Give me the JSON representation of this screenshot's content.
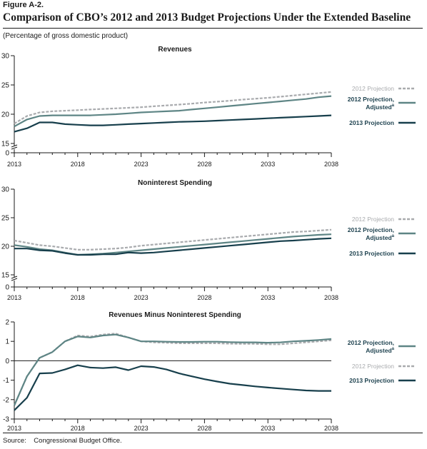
{
  "figure_label": "Figure A-2.",
  "figure_title": "Comparison of CBO’s 2012 and 2013 Budget Projections Under the Extended Baseline",
  "subtitle": "(Percentage of gross domestic product)",
  "source": "Source:    Congressional Budget Office.",
  "colors": {
    "p2012": "#a9abae",
    "p2012_adjusted": "#5e8585",
    "p2013": "#173f4c"
  },
  "chart_data": [
    {
      "type": "line",
      "title": "Revenues",
      "xlim": [
        2013,
        2038
      ],
      "ylim": [
        15,
        30
      ],
      "y_axis_break": true,
      "xticks": [
        "2013",
        "2018",
        "2023",
        "2028",
        "2033",
        "2038"
      ],
      "yticks": [
        "15",
        "20",
        "25",
        "30"
      ],
      "yzero_label": "0",
      "legend_position": "right",
      "legend_order": [
        "p2012",
        "p2012_adjusted",
        "p2013"
      ],
      "x": [
        2013,
        2014,
        2015,
        2016,
        2017,
        2018,
        2019,
        2020,
        2021,
        2022,
        2023,
        2024,
        2025,
        2026,
        2027,
        2028,
        2029,
        2030,
        2031,
        2032,
        2033,
        2034,
        2035,
        2036,
        2037,
        2038
      ],
      "series": [
        {
          "key": "p2012",
          "name": "2012 Projection",
          "style": "dashed",
          "values": [
            18.4,
            19.7,
            20.3,
            20.5,
            20.6,
            20.7,
            20.8,
            20.9,
            21.0,
            21.1,
            21.2,
            21.35,
            21.5,
            21.65,
            21.8,
            22.0,
            22.15,
            22.3,
            22.5,
            22.65,
            22.8,
            23.0,
            23.2,
            23.4,
            23.6,
            23.8
          ]
        },
        {
          "key": "p2012_adjusted",
          "name": "2012 Projection, Adjusted",
          "name_superscript": "a",
          "style": "solid",
          "values": [
            17.9,
            19.1,
            19.7,
            19.8,
            19.8,
            19.8,
            19.8,
            19.9,
            20.0,
            20.15,
            20.3,
            20.4,
            20.5,
            20.6,
            20.8,
            21.0,
            21.2,
            21.4,
            21.6,
            21.8,
            22.0,
            22.2,
            22.4,
            22.6,
            22.9,
            23.1
          ]
        },
        {
          "key": "p2013",
          "name": "2013 Projection",
          "style": "solid",
          "values": [
            17.0,
            17.6,
            18.6,
            18.6,
            18.3,
            18.2,
            18.1,
            18.1,
            18.2,
            18.3,
            18.4,
            18.5,
            18.6,
            18.7,
            18.75,
            18.8,
            18.9,
            19.0,
            19.1,
            19.2,
            19.3,
            19.4,
            19.5,
            19.6,
            19.7,
            19.8
          ]
        }
      ]
    },
    {
      "type": "line",
      "title": "Noninterest Spending",
      "xlim": [
        2013,
        2038
      ],
      "ylim": [
        15,
        30
      ],
      "y_axis_break": true,
      "xticks": [
        "2013",
        "2018",
        "2023",
        "2028",
        "2033",
        "2038"
      ],
      "yticks": [
        "15",
        "20",
        "25",
        "30"
      ],
      "yzero_label": "0",
      "legend_position": "right",
      "legend_order": [
        "p2012",
        "p2012_adjusted",
        "p2013"
      ],
      "x": [
        2013,
        2014,
        2015,
        2016,
        2017,
        2018,
        2019,
        2020,
        2021,
        2022,
        2023,
        2024,
        2025,
        2026,
        2027,
        2028,
        2029,
        2030,
        2031,
        2032,
        2033,
        2034,
        2035,
        2036,
        2037,
        2038
      ],
      "series": [
        {
          "key": "p2012",
          "name": "2012 Projection",
          "style": "dashed",
          "values": [
            21.0,
            20.6,
            20.2,
            20.0,
            19.7,
            19.4,
            19.4,
            19.5,
            19.6,
            19.8,
            20.1,
            20.3,
            20.5,
            20.7,
            20.9,
            21.1,
            21.3,
            21.5,
            21.7,
            21.9,
            22.1,
            22.3,
            22.5,
            22.6,
            22.75,
            22.9
          ]
        },
        {
          "key": "p2012_adjusted",
          "name": "2012 Projection, Adjusted",
          "name_superscript": "a",
          "style": "solid",
          "values": [
            20.2,
            19.9,
            19.5,
            19.3,
            18.9,
            18.5,
            18.6,
            18.7,
            18.9,
            19.1,
            19.3,
            19.5,
            19.7,
            19.9,
            20.1,
            20.3,
            20.5,
            20.7,
            20.9,
            21.1,
            21.3,
            21.5,
            21.7,
            21.85,
            22.0,
            22.1
          ]
        },
        {
          "key": "p2013",
          "name": "2013 Projection",
          "style": "solid",
          "values": [
            19.6,
            19.6,
            19.3,
            19.2,
            18.8,
            18.5,
            18.5,
            18.6,
            18.6,
            18.9,
            18.8,
            18.9,
            19.1,
            19.3,
            19.5,
            19.7,
            19.9,
            20.1,
            20.3,
            20.5,
            20.7,
            20.9,
            21.0,
            21.15,
            21.3,
            21.4
          ]
        }
      ]
    },
    {
      "type": "line",
      "title": "Revenues Minus Noninterest Spending",
      "xlim": [
        2013,
        2038
      ],
      "ylim": [
        -3,
        2
      ],
      "y_axis_break": false,
      "xticks": [
        "2013",
        "2018",
        "2023",
        "2028",
        "2033",
        "2038"
      ],
      "yticks": [
        "-3",
        "-2",
        "-1",
        "0",
        "1",
        "2"
      ],
      "legend_position": "right",
      "legend_order": [
        "p2012_adjusted",
        "p2012",
        "p2013"
      ],
      "x": [
        2013,
        2014,
        2015,
        2016,
        2017,
        2018,
        2019,
        2020,
        2021,
        2022,
        2023,
        2024,
        2025,
        2026,
        2027,
        2028,
        2029,
        2030,
        2031,
        2032,
        2033,
        2034,
        2035,
        2036,
        2037,
        2038
      ],
      "series": [
        {
          "key": "p2012",
          "name": "2012 Projection",
          "style": "dashed",
          "values": [
            -2.3,
            -0.8,
            0.15,
            0.45,
            1.0,
            1.3,
            1.25,
            1.35,
            1.4,
            1.2,
            1.0,
            0.95,
            0.93,
            0.9,
            0.9,
            0.9,
            0.9,
            0.88,
            0.87,
            0.87,
            0.85,
            0.85,
            0.9,
            0.95,
            1.0,
            1.05
          ]
        },
        {
          "key": "p2012_adjusted",
          "name": "2012 Projection, Adjusted",
          "name_superscript": "a",
          "style": "solid",
          "values": [
            -2.3,
            -0.8,
            0.15,
            0.45,
            1.0,
            1.25,
            1.2,
            1.3,
            1.35,
            1.2,
            1.0,
            1.0,
            0.98,
            0.97,
            0.97,
            0.98,
            0.98,
            0.96,
            0.95,
            0.95,
            0.93,
            0.95,
            1.0,
            1.03,
            1.07,
            1.12
          ]
        },
        {
          "key": "p2013",
          "name": "2013 Projection",
          "style": "solid",
          "values": [
            -2.55,
            -1.9,
            -0.65,
            -0.63,
            -0.45,
            -0.23,
            -0.35,
            -0.38,
            -0.33,
            -0.48,
            -0.28,
            -0.32,
            -0.45,
            -0.65,
            -0.8,
            -0.95,
            -1.07,
            -1.18,
            -1.25,
            -1.32,
            -1.38,
            -1.43,
            -1.48,
            -1.53,
            -1.55,
            -1.55
          ]
        }
      ]
    }
  ]
}
